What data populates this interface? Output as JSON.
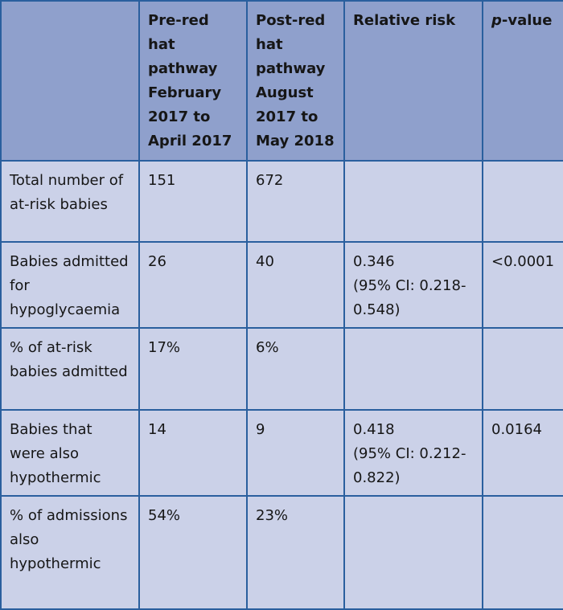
{
  "table": {
    "headers": {
      "col0": "",
      "col1_title": "Pre-red hat pathway",
      "col1_period": "February 2017 to April 2017",
      "col2_title": "Post-red hat pathway",
      "col2_period": "August 2017 to May 2018",
      "col3": "Relative risk",
      "col4_italic": "p",
      "col4_rest": "-value"
    },
    "rows": [
      {
        "label": "Total number of at-risk babies",
        "pre": "151",
        "post": "672",
        "rr": "",
        "rr_ci": "",
        "p": ""
      },
      {
        "label": "Babies admitted for hypoglycaemia",
        "pre": "26",
        "post": "40",
        "rr": "0.346",
        "rr_ci": "(95% CI: 0.218-0.548)",
        "p": "<0.0001"
      },
      {
        "label": "% of at-risk babies admitted",
        "pre": "17%",
        "post": "6%",
        "rr": "",
        "rr_ci": "",
        "p": ""
      },
      {
        "label": "Babies that were also hypothermic",
        "pre": "14",
        "post": "9",
        "rr": "0.418",
        "rr_ci": "(95% CI: 0.212-0.822)",
        "p": "0.0164"
      },
      {
        "label": "% of admissions also hypothermic",
        "pre": "54%",
        "post": "23%",
        "rr": "",
        "rr_ci": "",
        "p": ""
      }
    ]
  },
  "colors": {
    "border": "#2a5f9e",
    "header_bg": "#8fa0cc",
    "cell_bg": "#cbd1e8"
  }
}
